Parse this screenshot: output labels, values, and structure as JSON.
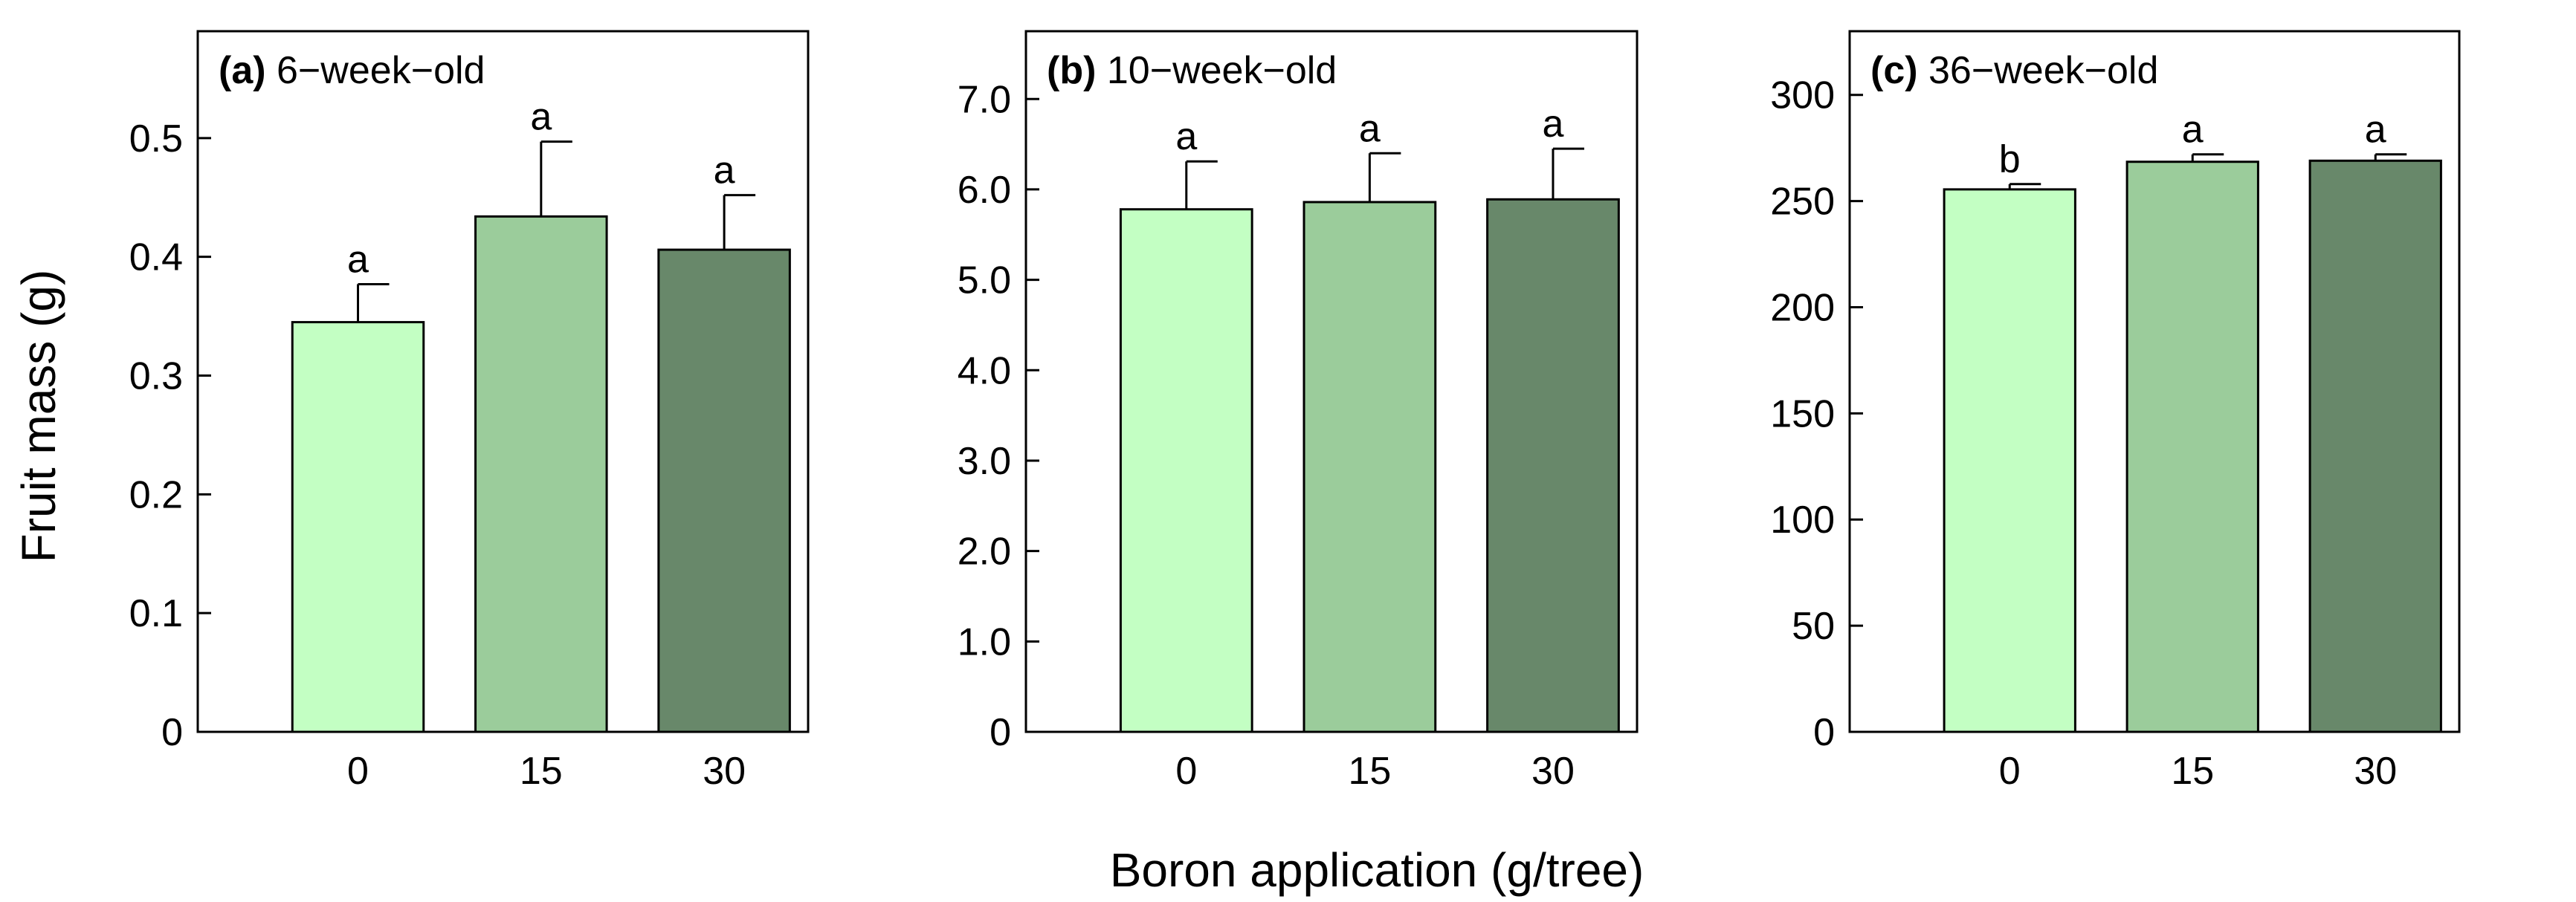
{
  "figure": {
    "ylabel": "Fruit mass (g)",
    "xlabel": "Boron application (g/tree)"
  },
  "colors": {
    "bar_0": "#c3ffc3",
    "bar_15": "#9bcc9b",
    "bar_30": "#68886a",
    "axis": "#000000"
  },
  "chart_data": [
    {
      "type": "bar",
      "panel_label": "(a)",
      "title": "6−week−old",
      "categories": [
        "0",
        "15",
        "30"
      ],
      "values": [
        0.345,
        0.434,
        0.406
      ],
      "errors": [
        0.032,
        0.063,
        0.046
      ],
      "letters": [
        "a",
        "a",
        "a"
      ],
      "ylim": [
        0,
        0.59
      ],
      "yticks": [
        0,
        0.1,
        0.2,
        0.3,
        0.4,
        0.5
      ],
      "ytick_labels": [
        "0",
        "0.1",
        "0.2",
        "0.3",
        "0.4",
        "0.5"
      ]
    },
    {
      "type": "bar",
      "panel_label": "(b)",
      "title": "10−week−old",
      "categories": [
        "0",
        "15",
        "30"
      ],
      "values": [
        5.78,
        5.86,
        5.89
      ],
      "errors": [
        0.53,
        0.54,
        0.56
      ],
      "letters": [
        "a",
        "a",
        "a"
      ],
      "ylim": [
        0,
        7.75
      ],
      "yticks": [
        0,
        1,
        2,
        3,
        4,
        5,
        6,
        7
      ],
      "ytick_labels": [
        "0",
        "1.0",
        "2.0",
        "3.0",
        "4.0",
        "5.0",
        "6.0",
        "7.0"
      ]
    },
    {
      "type": "bar",
      "panel_label": "(c)",
      "title": "36−week−old",
      "categories": [
        "0",
        "15",
        "30"
      ],
      "values": [
        255.5,
        268.5,
        269.0
      ],
      "errors": [
        2.5,
        3.5,
        3.0
      ],
      "letters": [
        "b",
        "a",
        "a"
      ],
      "ylim": [
        0,
        330
      ],
      "yticks": [
        0,
        50,
        100,
        150,
        200,
        250,
        300
      ],
      "ytick_labels": [
        "0",
        "50",
        "100",
        "150",
        "200",
        "250",
        "300"
      ]
    }
  ]
}
